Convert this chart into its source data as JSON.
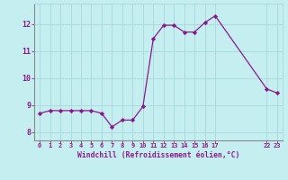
{
  "x": [
    0,
    1,
    2,
    3,
    4,
    5,
    6,
    7,
    8,
    9,
    10,
    11,
    12,
    13,
    14,
    15,
    16,
    17,
    22,
    23
  ],
  "y": [
    8.7,
    8.8,
    8.8,
    8.8,
    8.8,
    8.8,
    8.7,
    8.2,
    8.45,
    8.45,
    8.95,
    11.45,
    11.95,
    11.95,
    11.7,
    11.7,
    12.05,
    12.3,
    9.6,
    9.45
  ],
  "line_color": "#8B1A8B",
  "marker_color": "#8B1A8B",
  "bg_color": "#C5EEF0",
  "grid_color": "#A8D8DC",
  "tick_color": "#8B1A8B",
  "xlabel": "Windchill (Refroidissement éolien,°C)",
  "xlabel_color": "#8B1A8B",
  "xticks": [
    0,
    1,
    2,
    3,
    4,
    5,
    6,
    7,
    8,
    9,
    10,
    11,
    12,
    13,
    14,
    15,
    16,
    17,
    22,
    23
  ],
  "xtick_labels": [
    "0",
    "1",
    "2",
    "3",
    "4",
    "5",
    "6",
    "7",
    "8",
    "9",
    "10",
    "11",
    "12",
    "13",
    "14",
    "15",
    "16",
    "17",
    "22",
    "23"
  ],
  "yticks": [
    8,
    9,
    10,
    11,
    12
  ],
  "ylim": [
    7.7,
    12.75
  ],
  "xlim": [
    -0.5,
    23.5
  ],
  "font_family": "monospace"
}
